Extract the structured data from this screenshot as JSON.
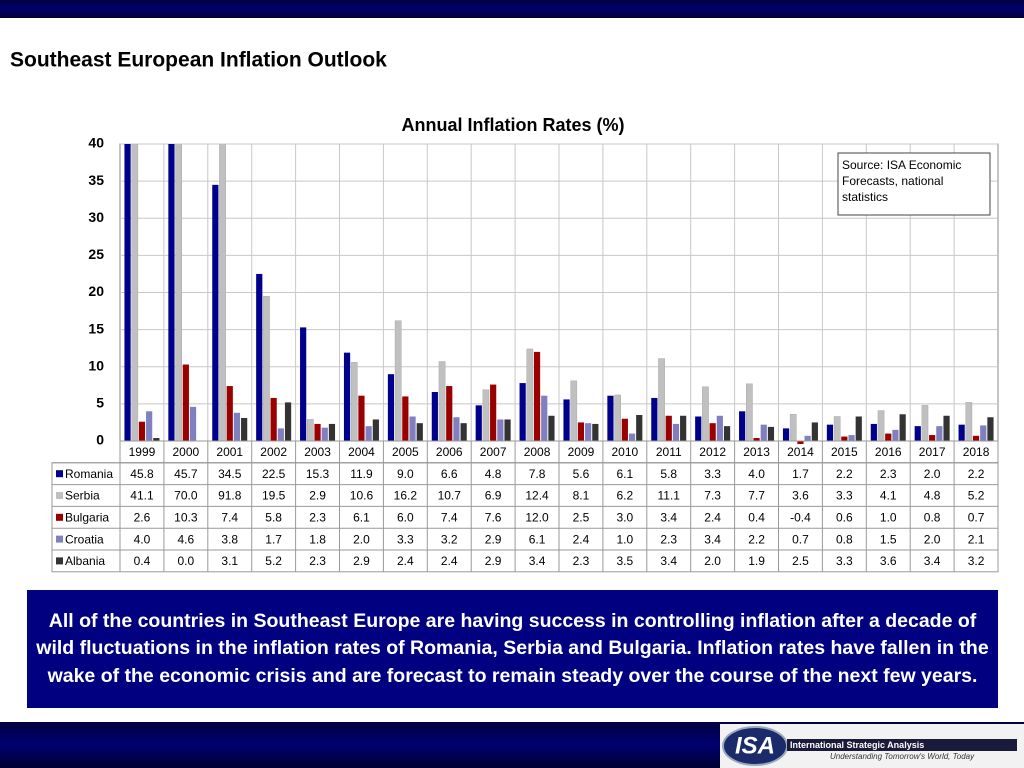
{
  "slide_title": "Southeast European Inflation Outlook",
  "chart_data": {
    "type": "bar",
    "title": "Annual Inflation Rates (%)",
    "source": "Source: ISA Economic Forecasts, national statistics",
    "categories": [
      "1999",
      "2000",
      "2001",
      "2002",
      "2003",
      "2004",
      "2005",
      "2006",
      "2007",
      "2008",
      "2009",
      "2010",
      "2011",
      "2012",
      "2013",
      "2014",
      "2015",
      "2016",
      "2017",
      "2018"
    ],
    "series": [
      {
        "name": "Romania",
        "color": "#00008b",
        "values": [
          45.8,
          45.7,
          34.5,
          22.5,
          15.3,
          11.9,
          9.0,
          6.6,
          4.8,
          7.8,
          5.6,
          6.1,
          5.8,
          3.3,
          4.0,
          1.7,
          2.2,
          2.3,
          2.0,
          2.2
        ],
        "value_labels": [
          "45.8",
          "45.7",
          "34.5",
          "22.5",
          "15.3",
          "11.9",
          "9.0",
          "6.6",
          "4.8",
          "7.8",
          "5.6",
          "6.1",
          "5.8",
          "3.3",
          "4.0",
          "1.7",
          "2.2",
          "2.3",
          "2.0",
          "2.2"
        ]
      },
      {
        "name": "Serbia",
        "color": "#c0c0c0",
        "values": [
          41.1,
          70.0,
          91.8,
          19.5,
          2.9,
          10.6,
          16.2,
          10.7,
          6.9,
          12.4,
          8.1,
          6.2,
          11.1,
          7.3,
          7.7,
          3.6,
          3.3,
          4.1,
          4.8,
          5.2
        ],
        "value_labels": [
          "41.1",
          "70.0",
          "91.8",
          "19.5",
          "2.9",
          "10.6",
          "16.2",
          "10.7",
          "6.9",
          "12.4",
          "8.1",
          "6.2",
          "11.1",
          "7.3",
          "7.7",
          "3.6",
          "3.3",
          "4.1",
          "4.8",
          "5.2"
        ]
      },
      {
        "name": "Bulgaria",
        "color": "#990000",
        "values": [
          2.6,
          10.3,
          7.4,
          5.8,
          2.3,
          6.1,
          6.0,
          7.4,
          7.6,
          12.0,
          2.5,
          3.0,
          3.4,
          2.4,
          0.4,
          -0.4,
          0.6,
          1.0,
          0.8,
          0.7
        ],
        "value_labels": [
          "2.6",
          "10.3",
          "7.4",
          "5.8",
          "2.3",
          "6.1",
          "6.0",
          "7.4",
          "7.6",
          "12.0",
          "2.5",
          "3.0",
          "3.4",
          "2.4",
          "0.4",
          "-0.4",
          "0.6",
          "1.0",
          "0.8",
          "0.7"
        ]
      },
      {
        "name": "Croatia",
        "color": "#8080c0",
        "values": [
          4.0,
          4.6,
          3.8,
          1.7,
          1.8,
          2.0,
          3.3,
          3.2,
          2.9,
          6.1,
          2.4,
          1.0,
          2.3,
          3.4,
          2.2,
          0.7,
          0.8,
          1.5,
          2.0,
          2.1
        ],
        "value_labels": [
          "4.0",
          "4.6",
          "3.8",
          "1.7",
          "1.8",
          "2.0",
          "3.3",
          "3.2",
          "2.9",
          "6.1",
          "2.4",
          "1.0",
          "2.3",
          "3.4",
          "2.2",
          "0.7",
          "0.8",
          "1.5",
          "2.0",
          "2.1"
        ]
      },
      {
        "name": "Albania",
        "color": "#333333",
        "values": [
          0.4,
          0.0,
          3.1,
          5.2,
          2.3,
          2.9,
          2.4,
          2.4,
          2.9,
          3.4,
          2.3,
          3.5,
          3.4,
          2.0,
          1.9,
          2.5,
          3.3,
          3.6,
          3.4,
          3.2
        ],
        "value_labels": [
          "0.4",
          "0.0",
          "3.1",
          "5.2",
          "2.3",
          "2.9",
          "2.4",
          "2.4",
          "2.9",
          "3.4",
          "2.3",
          "3.5",
          "3.4",
          "2.0",
          "1.9",
          "2.5",
          "3.3",
          "3.6",
          "3.4",
          "3.2"
        ]
      }
    ],
    "ylim": [
      0,
      40
    ],
    "yticks": [
      0,
      5,
      10,
      15,
      20,
      25,
      30,
      35,
      40
    ],
    "grid": true
  },
  "caption": "All of the countries in Southeast Europe are having success in controlling inflation after a decade of wild fluctuations in the inflation rates of Romania, Serbia and Bulgaria. Inflation rates have fallen in the wake of the economic crisis and are forecast to remain steady over the course of the next few years.",
  "logo": {
    "mark": "ISA",
    "name": "International Strategic Analysis",
    "tagline": "Understanding Tomorrow's World, Today"
  }
}
